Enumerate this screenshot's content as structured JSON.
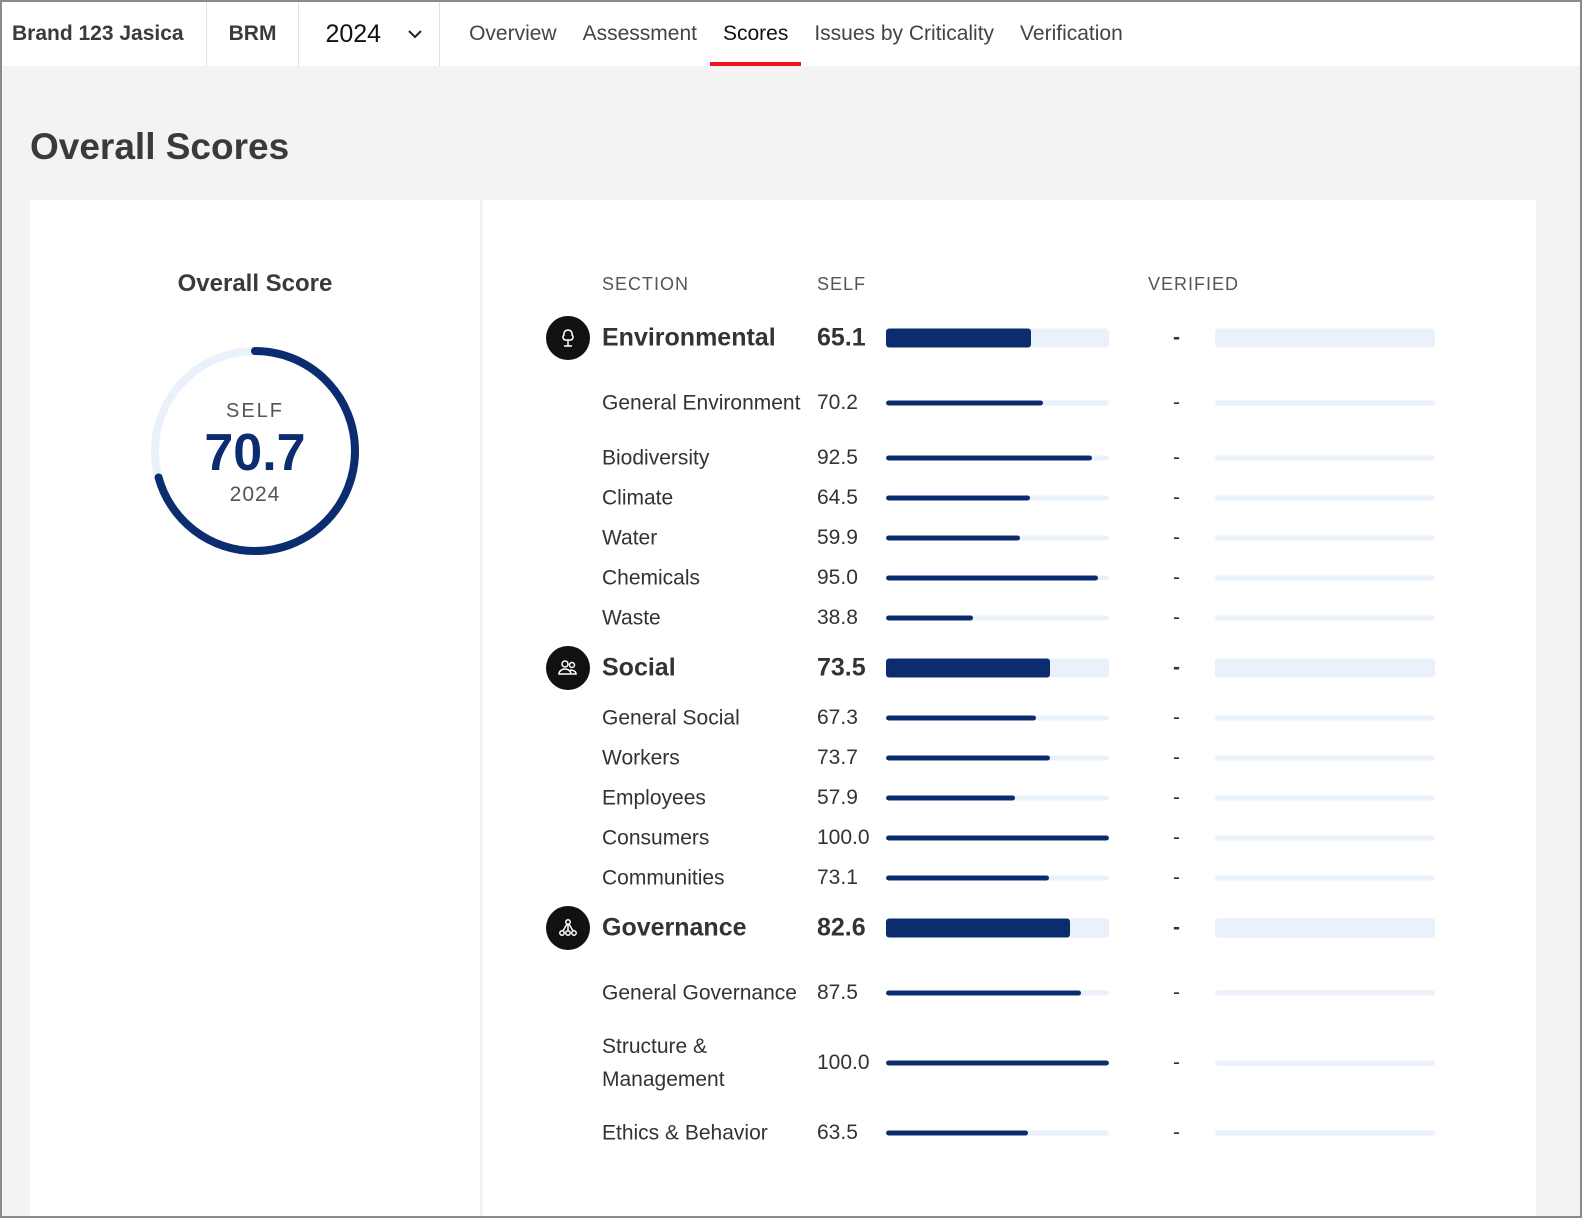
{
  "nav": {
    "brand": "Brand 123 Jasica",
    "org": "BRM",
    "year": "2024",
    "tabs": [
      "Overview",
      "Assessment",
      "Scores",
      "Issues by Criticality",
      "Verification"
    ],
    "active_tab": "Scores"
  },
  "page_title": "Overall Scores",
  "overall": {
    "title": "Overall Score",
    "label": "SELF",
    "value": "70.7",
    "percent": 70.7,
    "year": "2024"
  },
  "columns": {
    "section": "SECTION",
    "self": "SELF",
    "verified": "VERIFIED"
  },
  "colors": {
    "accent": "#0b2d6f",
    "track": "#eaf1fb",
    "active_tab": "#e8161c"
  },
  "sections": [
    {
      "name": "Environmental",
      "icon": "tree-icon",
      "self": "65.1",
      "verified": "-",
      "items": [
        {
          "name": "General Environment",
          "self": "70.2",
          "verified": "-"
        },
        {
          "name": "Biodiversity",
          "self": "92.5",
          "verified": "-"
        },
        {
          "name": "Climate",
          "self": "64.5",
          "verified": "-"
        },
        {
          "name": "Water",
          "self": "59.9",
          "verified": "-"
        },
        {
          "name": "Chemicals",
          "self": "95.0",
          "verified": "-"
        },
        {
          "name": "Waste",
          "self": "38.8",
          "verified": "-"
        }
      ]
    },
    {
      "name": "Social",
      "icon": "people-icon",
      "self": "73.5",
      "verified": "-",
      "items": [
        {
          "name": "General Social",
          "self": "67.3",
          "verified": "-"
        },
        {
          "name": "Workers",
          "self": "73.7",
          "verified": "-"
        },
        {
          "name": "Employees",
          "self": "57.9",
          "verified": "-"
        },
        {
          "name": "Consumers",
          "self": "100.0",
          "verified": "-"
        },
        {
          "name": "Communities",
          "self": "73.1",
          "verified": "-"
        }
      ]
    },
    {
      "name": "Governance",
      "icon": "network-icon",
      "self": "82.6",
      "verified": "-",
      "items": [
        {
          "name": "General Governance",
          "self": "87.5",
          "verified": "-"
        },
        {
          "name": "Structure & Management",
          "self": "100.0",
          "verified": "-"
        },
        {
          "name": "Ethics & Behavior",
          "self": "63.5",
          "verified": "-"
        }
      ]
    }
  ]
}
